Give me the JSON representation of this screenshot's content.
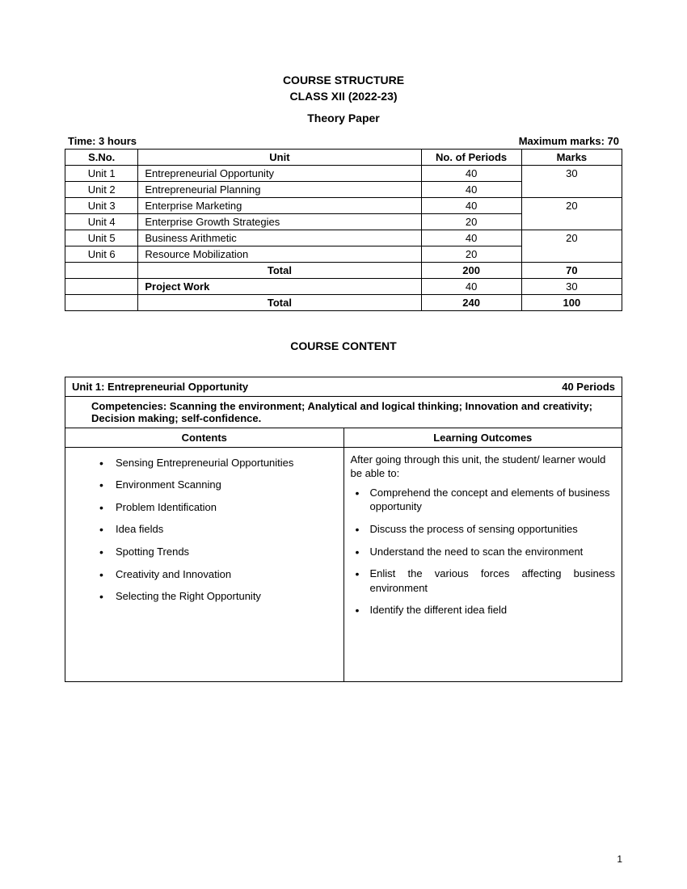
{
  "header": {
    "line1": "COURSE STRUCTURE",
    "line2": "CLASS XII (2022-23)",
    "line3": "Theory Paper"
  },
  "meta": {
    "time_label": "Time: 3 hours",
    "marks_label": "Maximum marks: 70"
  },
  "course_table": {
    "headers": {
      "sno": "S.No.",
      "unit": "Unit",
      "periods": "No. of Periods",
      "marks": "Marks"
    },
    "rows": [
      {
        "sno": "Unit 1",
        "unit": "Entrepreneurial Opportunity",
        "periods": "40"
      },
      {
        "sno": "Unit 2",
        "unit": "Entrepreneurial Planning",
        "periods": "40"
      },
      {
        "sno": "Unit 3",
        "unit": "Enterprise Marketing",
        "periods": "40"
      },
      {
        "sno": "Unit 4",
        "unit": "Enterprise Growth Strategies",
        "periods": "20"
      },
      {
        "sno": "Unit 5",
        "unit": "Business Arithmetic",
        "periods": "40"
      },
      {
        "sno": "Unit 6",
        "unit": "Resource Mobilization",
        "periods": "20"
      }
    ],
    "marks_groups": [
      "30",
      "20",
      "20"
    ],
    "subtotal": {
      "label": "Total",
      "periods": "200",
      "marks": "70"
    },
    "project": {
      "label": "Project Work",
      "periods": "40",
      "marks": "30"
    },
    "grand_total": {
      "label": "Total",
      "periods": "240",
      "marks": "100"
    }
  },
  "section_heading": "COURSE CONTENT",
  "unit_detail": {
    "title": "Unit 1: Entrepreneurial Opportunity",
    "periods": "40 Periods",
    "competencies": "Competencies: Scanning the environment; Analytical and logical thinking; Innovation and creativity; Decision making; self-confidence.",
    "contents_header": "Contents",
    "outcomes_header": "Learning Outcomes",
    "contents": [
      "Sensing Entrepreneurial Opportunities",
      "Environment Scanning",
      "Problem Identification",
      "Idea fields",
      "Spotting Trends",
      "Creativity and Innovation",
      "Selecting the Right Opportunity"
    ],
    "outcomes_intro": "After going through this unit, the student/ learner would be able to:",
    "outcomes": [
      "Comprehend the concept and elements of business opportunity",
      "Discuss the process of sensing opportunities",
      "Understand the need to scan the environment",
      "Enlist the various forces affecting business environment",
      "Identify the different idea field"
    ],
    "outcomes_justify_index": 3
  },
  "page_number": "1"
}
